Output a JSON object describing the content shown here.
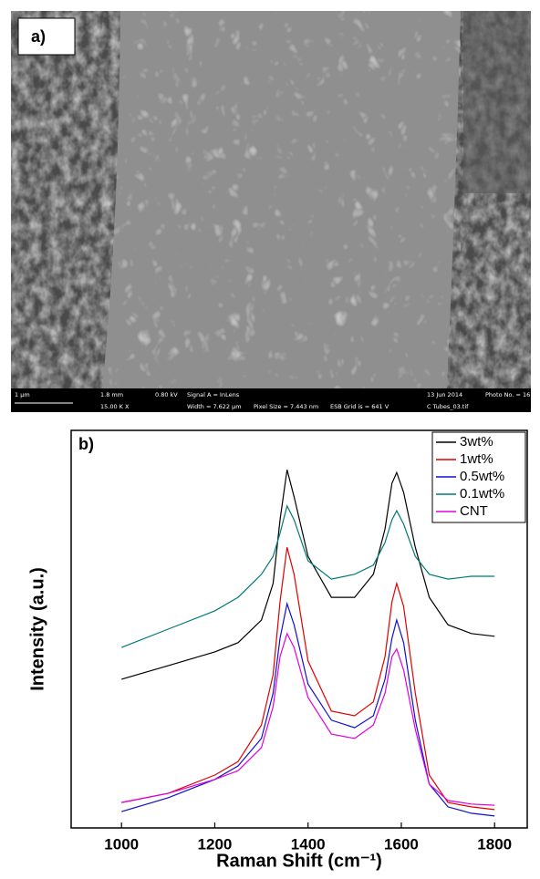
{
  "panel_a": {
    "label": "a)",
    "info_bar": [
      "1 µm",
      "1.8 mm",
      "0.80 kV",
      "Signal A = InLens",
      "13 Jun 2014",
      "Photo No. = 16",
      "15.00 K X",
      "Width = 7.622 µm",
      "Pixel Size = 7.443 nm",
      "ESB Grid is = 641 V",
      "C Tubes_03.tif"
    ]
  },
  "chart_data": {
    "type": "line",
    "panel_label": "b)",
    "x_label": "Raman Shift (cm⁻¹)",
    "y_label": "Intensity (a.u.)",
    "x": [
      1000,
      1100,
      1200,
      1250,
      1300,
      1325,
      1340,
      1355,
      1370,
      1400,
      1450,
      1500,
      1540,
      1565,
      1580,
      1590,
      1605,
      1630,
      1660,
      1700,
      1750,
      1800
    ],
    "xlim": [
      892,
      1870
    ],
    "xticks": [
      1000,
      1200,
      1400,
      1600,
      1800
    ],
    "ylim": [
      0,
      100
    ],
    "legend": "upper right",
    "series": [
      {
        "name": "3wt%",
        "color": "#000000",
        "values": [
          37.4,
          40.8,
          44.3,
          46.6,
          52.3,
          61.5,
          77.5,
          90.1,
          83.3,
          68.3,
          58.0,
          58.0,
          63.8,
          75.2,
          86.7,
          89.4,
          84.4,
          70.6,
          58.0,
          51.1,
          48.9,
          48.2
        ]
      },
      {
        "name": "1wt%",
        "color": "#e00000",
        "values": [
          6.4,
          8.7,
          13.3,
          16.7,
          25.9,
          38.5,
          56.9,
          70.6,
          63.8,
          42.0,
          29.4,
          28.2,
          31.7,
          43.1,
          56.9,
          61.5,
          55.7,
          33.9,
          13.3,
          6.4,
          5.3,
          4.6
        ]
      },
      {
        "name": "0.5wt%",
        "color": "#1010d0",
        "values": [
          4.1,
          7.6,
          12.2,
          15.6,
          22.5,
          33.9,
          47.7,
          56.4,
          51.1,
          36.2,
          27.1,
          25.2,
          28.2,
          37.4,
          47.7,
          52.3,
          46.6,
          27.1,
          11.0,
          5.3,
          3.7,
          3.0
        ]
      },
      {
        "name": "0.1wt%",
        "color": "#007a7a",
        "values": [
          45.4,
          50.0,
          54.6,
          58.0,
          63.8,
          68.3,
          74.1,
          81.0,
          77.5,
          67.2,
          62.6,
          63.8,
          66.1,
          71.8,
          77.5,
          79.8,
          76.4,
          68.3,
          63.8,
          62.6,
          63.3,
          63.3
        ]
      },
      {
        "name": "CNT",
        "color": "#e000e0",
        "values": [
          6.4,
          8.7,
          12.2,
          14.4,
          20.2,
          30.5,
          43.1,
          48.9,
          45.4,
          32.8,
          23.6,
          22.5,
          25.9,
          33.9,
          43.1,
          45.0,
          39.7,
          24.8,
          11.0,
          6.9,
          6.0,
          5.7
        ]
      }
    ]
  }
}
